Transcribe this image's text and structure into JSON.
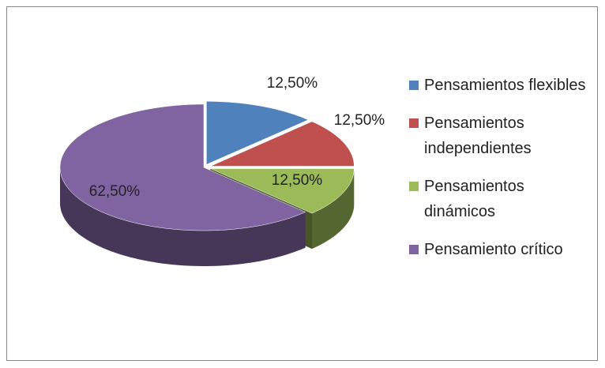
{
  "chart_data": {
    "type": "pie",
    "categories": [
      "Pensamientos flexibles",
      "Pensamientos independientes",
      "Pensamientos dinámicos",
      "Pensamiento crítico"
    ],
    "values": [
      12.5,
      12.5,
      12.5,
      62.5
    ],
    "value_labels": [
      "12,50%",
      "12,50%",
      "12,50%",
      "62,50%"
    ],
    "colors": [
      "#4f81bd",
      "#c0504d",
      "#9bbb59",
      "#8064a2"
    ],
    "legend": "right"
  }
}
